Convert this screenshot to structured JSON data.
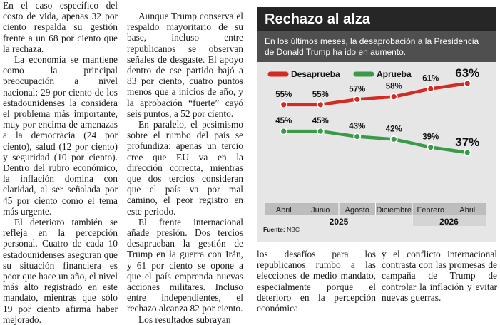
{
  "article": {
    "col1": [
      "En el caso específico del costo de vida, apenas 32 por ciento respalda su gestión frente a un 68 por ciento que la rechaza.",
      "La economía se mantiene como la principal preocupación a nivel nacional: 29 por ciento de los estadounidenses la considera el problema más importante, muy por encima de amenazas a la democracia (24 por ciento), salud (12 por ciento) y seguridad (10 por ciento). Dentro del rubro económico, la inflación domina con claridad, al ser señalada por 45 por ciento como el tema más urgente.",
      "El deterioro también se refleja en la percepción personal. Cuatro de cada 10 estadounidenses aseguran que su situación financiera es peor que hace un año, el nivel más alto registrado en este mandato, mientras que sólo 19 por ciento afirma haber mejorado."
    ],
    "col2": [
      "Aunque Trump conserva el respaldo mayoritario de su base, incluso entre republicanos se observan señales de desgaste. El apoyo dentro de ese partido bajó a 83 por ciento, cuatro puntos menos que a inicios de año, y la aprobación “fuerte” cayó seis puntos, a 52 por ciento.",
      "En paralelo, el pesimismo sobre el rumbo del país se profundiza: apenas un tercio cree que EU va en la dirección correcta, mientras que dos tercios consideran que el país va por mal camino, el peor registro en este periodo.",
      "El frente internacional añade presión. Dos tercios desaprueban la gestión de Trump en la guerra con Irán, y 61 por ciento se opone a que el país emprenda nuevas acciones militares. Incluso entre independientes, el rechazo alcanza 82 por ciento.",
      "Los resultados subrayan"
    ],
    "col3": "los desafíos para los republicanos rumbo a las elecciones de medio mandato, especialmente porque el deterioro en la percepción económica",
    "col4": "y el conflicto internacional contrasta con las promesas de campaña de Trump de controlar la inflación y evitar nuevas guerras."
  },
  "infobox": {
    "title": "Rechazo al alza",
    "subtitle": "En los últimos meses, la desaprobación a la Presidencia de Donald Trump ha ido en aumento.",
    "source_label": "Fuente:",
    "source_value": "NBC"
  },
  "colors": {
    "disapprove": "#d42a22",
    "approve": "#3a9a48",
    "axis_band": "#bdbdbd",
    "year_band": "#d4d4d4"
  },
  "chart_data": {
    "type": "line",
    "categories": [
      "Abril",
      "Junio",
      "Agosto",
      "Diciembre",
      "Febrero",
      "Abril"
    ],
    "years": [
      {
        "label": "2025",
        "from": 0,
        "to": 3
      },
      {
        "label": "2026",
        "from": 4,
        "to": 5
      }
    ],
    "series": [
      {
        "name": "Desaprueba",
        "color": "#d42a22",
        "values": [
          55,
          55,
          57,
          58,
          61,
          63
        ],
        "labels": [
          "55%",
          "55%",
          "57%",
          "58%",
          "61%",
          "63%"
        ]
      },
      {
        "name": "Aprueba",
        "color": "#3a9a48",
        "values": [
          45,
          45,
          43,
          42,
          39,
          37
        ],
        "labels": [
          "45%",
          "45%",
          "43%",
          "42%",
          "39%",
          "37%"
        ]
      }
    ],
    "unit": "%"
  }
}
